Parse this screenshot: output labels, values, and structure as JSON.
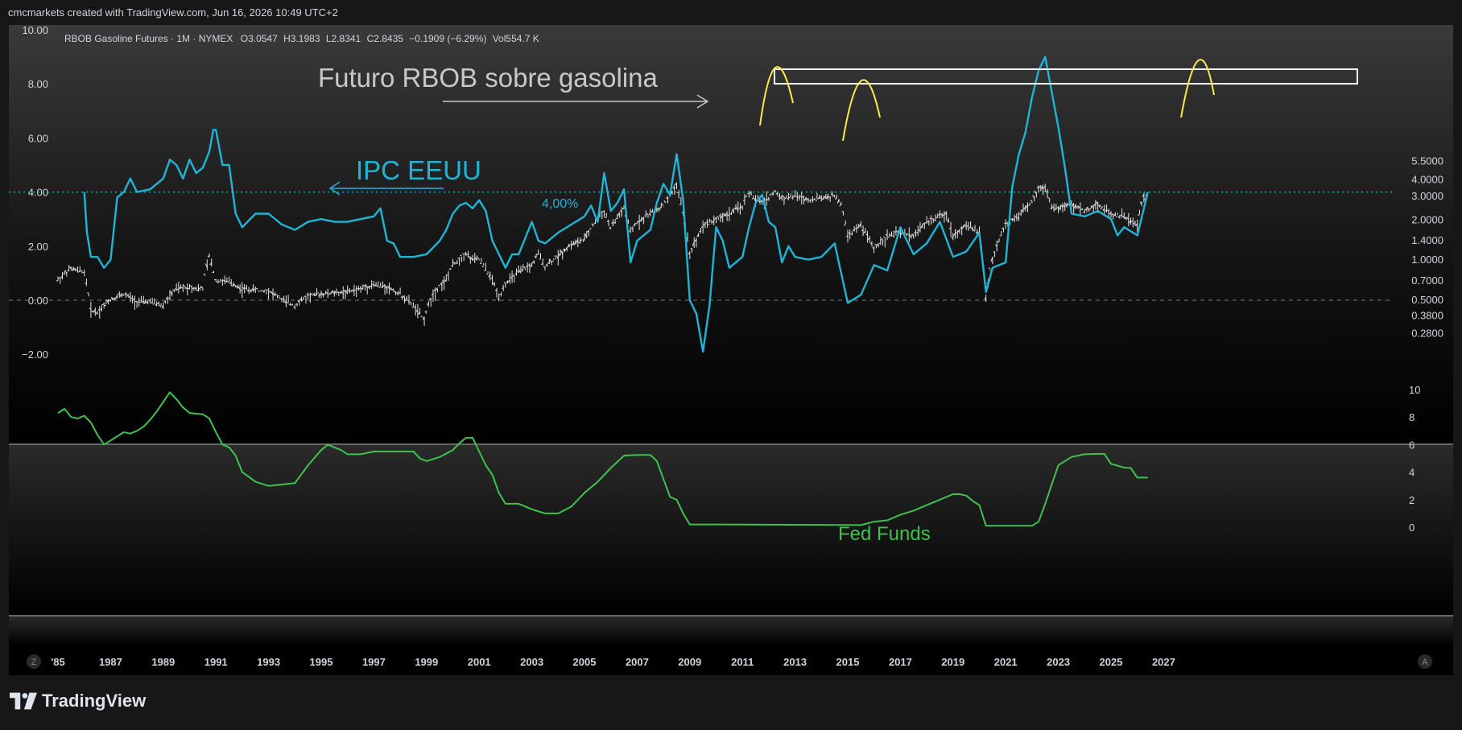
{
  "header": {
    "attribution": "cmcmarkets created with TradingView.com, Jun 16, 2026 10:49 UTC+2",
    "symbol": "RBOB Gasoline Futures · 1M · NYMEX",
    "o_label": "O",
    "o_value": "3.0547",
    "h_label": "H",
    "h_value": "3.1983",
    "l_label": "L",
    "l_value": "2.8341",
    "c_label": "C",
    "c_value": "2.8435",
    "change": "−0.1909 (−6.29%)",
    "vol_label": "Vol",
    "vol_value": "554.7 K"
  },
  "annotations": {
    "title": "Futuro RBOB sobre gasolina",
    "cpi_label": "IPC EEUU",
    "level_label": "4,00%",
    "fed_label": "Fed Funds"
  },
  "footer": {
    "brand": "TradingView",
    "z_button": "Z",
    "a_button": "A"
  },
  "colors": {
    "background": "#000000",
    "cpi": "#1fb5d6",
    "fed": "#3ec24e",
    "price": "#e6e6e6",
    "highlight": "#ffe94a",
    "text": "#d1d4dc"
  },
  "chart_data": [
    {
      "type": "line",
      "title": "RBOB Gasoline Futures · 1M · NYMEX",
      "left_axis_ticks": [
        "10.00",
        "8.00",
        "6.00",
        "4.00",
        "2.00",
        "0.00",
        "−2.00"
      ],
      "left_ylim": [
        -2.8,
        11.0
      ],
      "right_axis_ticks": [
        "5.5000",
        "4.0000",
        "3.0000",
        "2.0000",
        "1.4000",
        "1.0000",
        "0.7000",
        "0.5000",
        "0.3800",
        "0.2800"
      ],
      "right_scale": "log",
      "x_ticks": [
        "'85",
        "1987",
        "1989",
        "1991",
        "1993",
        "1995",
        "1997",
        "1999",
        "2001",
        "2003",
        "2005",
        "2007",
        "2009",
        "2011",
        "2013",
        "2015",
        "2017",
        "2019",
        "2021",
        "2023",
        "2025",
        "2027"
      ],
      "xlim": [
        1984.9,
        2028.6
      ],
      "reference_lines": [
        {
          "y": 4.0,
          "label": "4,00%",
          "style": "dotted"
        },
        {
          "y": 0.0,
          "style": "dashed"
        }
      ],
      "series": [
        {
          "name": "IPC EEUU",
          "axis": "left",
          "x": [
            1986.0,
            1986.1,
            1986.25,
            1986.5,
            1986.75,
            1987.0,
            1987.25,
            1987.5,
            1987.75,
            1988.0,
            1988.5,
            1989.0,
            1989.25,
            1989.5,
            1989.75,
            1990.0,
            1990.25,
            1990.5,
            1990.75,
            1990.9,
            1991.0,
            1991.25,
            1991.5,
            1991.75,
            1992.0,
            1992.5,
            1993.0,
            1993.5,
            1994.0,
            1994.5,
            1995.0,
            1995.5,
            1996.0,
            1996.5,
            1997.0,
            1997.25,
            1997.5,
            1997.75,
            1998.0,
            1998.5,
            1999.0,
            1999.5,
            1999.75,
            2000.0,
            2000.25,
            2000.5,
            2000.75,
            2001.0,
            2001.25,
            2001.5,
            2001.75,
            2002.0,
            2002.25,
            2002.5,
            2003.0,
            2003.25,
            2003.5,
            2004.0,
            2004.5,
            2005.0,
            2005.25,
            2005.5,
            2005.75,
            2006.0,
            2006.25,
            2006.5,
            2006.75,
            2007.0,
            2007.5,
            2007.75,
            2008.0,
            2008.25,
            2008.5,
            2008.75,
            2009.0,
            2009.25,
            2009.5,
            2009.75,
            2010.0,
            2010.25,
            2010.5,
            2011.0,
            2011.25,
            2011.5,
            2011.75,
            2012.0,
            2012.25,
            2012.5,
            2012.75,
            2013.0,
            2013.5,
            2014.0,
            2014.5,
            2015.0,
            2015.5,
            2016.0,
            2016.5,
            2017.0,
            2017.25,
            2017.5,
            2018.0,
            2018.5,
            2019.0,
            2019.5,
            2020.0,
            2020.25,
            2020.5,
            2021.0,
            2021.25,
            2021.5,
            2021.75,
            2022.0,
            2022.25,
            2022.5,
            2022.75,
            2023.0,
            2023.25,
            2023.5,
            2024.0,
            2024.5,
            2025.0,
            2025.25,
            2025.5,
            2026.0,
            2026.4
          ],
          "values": [
            4.0,
            2.5,
            1.6,
            1.6,
            1.2,
            1.5,
            3.8,
            4.0,
            4.5,
            4.0,
            4.1,
            4.5,
            5.2,
            5.0,
            4.5,
            5.2,
            4.7,
            4.9,
            5.5,
            6.3,
            6.3,
            5.0,
            5.0,
            3.2,
            2.7,
            3.2,
            3.2,
            2.8,
            2.6,
            2.9,
            3.0,
            2.9,
            2.9,
            3.0,
            3.1,
            3.4,
            2.2,
            2.1,
            1.6,
            1.6,
            1.7,
            2.2,
            2.6,
            3.2,
            3.5,
            3.6,
            3.4,
            3.7,
            3.3,
            2.2,
            1.7,
            1.2,
            1.7,
            1.7,
            2.9,
            2.2,
            2.1,
            2.5,
            2.8,
            3.1,
            3.5,
            2.9,
            4.7,
            3.3,
            3.6,
            4.1,
            1.4,
            2.2,
            2.6,
            3.6,
            4.3,
            3.9,
            5.4,
            3.7,
            0.0,
            -0.5,
            -1.9,
            -0.2,
            2.7,
            2.2,
            1.2,
            1.6,
            2.7,
            3.6,
            3.9,
            2.9,
            2.7,
            1.4,
            2.0,
            1.6,
            1.5,
            1.6,
            2.1,
            -0.1,
            0.2,
            1.3,
            1.1,
            2.7,
            2.2,
            1.7,
            2.1,
            2.9,
            1.6,
            1.8,
            2.5,
            0.3,
            1.2,
            1.4,
            4.2,
            5.4,
            6.2,
            7.5,
            8.5,
            9.0,
            7.7,
            6.4,
            4.9,
            3.2,
            3.1,
            3.3,
            3.0,
            2.4,
            2.7,
            2.4,
            4.0
          ]
        },
        {
          "name": "RBOB Gasoline Futures",
          "axis": "right",
          "x": [
            1985.0,
            1985.5,
            1986.0,
            1986.25,
            1986.5,
            1987.0,
            1987.5,
            1988.0,
            1988.5,
            1989.0,
            1989.5,
            1990.0,
            1990.5,
            1990.75,
            1991.0,
            1991.5,
            1992.0,
            1993.0,
            1993.5,
            1994.0,
            1994.5,
            1995.0,
            1996.0,
            1996.5,
            1997.0,
            1997.5,
            1998.0,
            1998.5,
            1998.9,
            1999.25,
            1999.75,
            2000.0,
            2000.5,
            2000.75,
            2001.0,
            2001.5,
            2001.75,
            2002.0,
            2002.5,
            2003.0,
            2003.25,
            2003.5,
            2004.0,
            2004.5,
            2005.0,
            2005.5,
            2005.75,
            2006.0,
            2006.5,
            2006.75,
            2007.0,
            2007.5,
            2008.0,
            2008.25,
            2008.5,
            2008.75,
            2009.0,
            2009.25,
            2009.5,
            2010.0,
            2010.5,
            2011.0,
            2011.25,
            2011.5,
            2011.75,
            2012.0,
            2012.25,
            2012.5,
            2013.0,
            2013.5,
            2014.0,
            2014.5,
            2014.75,
            2015.0,
            2015.5,
            2016.0,
            2016.5,
            2017.0,
            2017.5,
            2018.0,
            2018.5,
            2018.75,
            2019.0,
            2019.5,
            2020.0,
            2020.25,
            2020.5,
            2021.0,
            2021.5,
            2022.0,
            2022.25,
            2022.5,
            2022.75,
            2023.0,
            2023.5,
            2024.0,
            2024.5,
            2025.0,
            2025.5,
            2026.0,
            2026.25,
            2026.4
          ],
          "values": [
            0.7,
            0.85,
            0.8,
            0.42,
            0.4,
            0.5,
            0.55,
            0.48,
            0.48,
            0.45,
            0.6,
            0.62,
            0.6,
            1.05,
            0.7,
            0.68,
            0.6,
            0.58,
            0.5,
            0.45,
            0.53,
            0.55,
            0.57,
            0.6,
            0.65,
            0.62,
            0.55,
            0.45,
            0.35,
            0.55,
            0.7,
            0.9,
            1.1,
            1.0,
            1.0,
            0.7,
            0.52,
            0.65,
            0.8,
            0.9,
            1.1,
            0.88,
            1.05,
            1.3,
            1.4,
            2.0,
            2.3,
            1.7,
            2.4,
            1.6,
            1.9,
            2.2,
            2.5,
            3.0,
            3.6,
            2.2,
            1.1,
            1.4,
            1.8,
            2.0,
            2.2,
            2.5,
            3.2,
            2.8,
            2.7,
            2.9,
            3.2,
            2.9,
            3.0,
            2.8,
            2.9,
            3.0,
            2.6,
            1.5,
            1.8,
            1.2,
            1.5,
            1.6,
            1.5,
            1.9,
            2.1,
            2.2,
            1.5,
            1.8,
            1.6,
            0.5,
            1.0,
            1.8,
            2.1,
            2.7,
            3.4,
            3.5,
            2.5,
            2.4,
            2.6,
            2.3,
            2.6,
            2.2,
            2.1,
            1.8,
            3.0,
            2.84
          ]
        }
      ]
    },
    {
      "type": "line",
      "title": "Fed Funds",
      "y_ticks": [
        "10",
        "8",
        "6",
        "4",
        "2",
        "0"
      ],
      "ylim": [
        0,
        10
      ],
      "series": [
        {
          "name": "Fed Funds",
          "x": [
            1985.0,
            1985.25,
            1985.5,
            1985.75,
            1986.0,
            1986.25,
            1986.5,
            1986.75,
            1987.0,
            1987.25,
            1987.5,
            1987.75,
            1988.0,
            1988.25,
            1988.5,
            1988.75,
            1989.0,
            1989.25,
            1989.5,
            1989.75,
            1990.0,
            1990.5,
            1990.75,
            1991.0,
            1991.25,
            1991.5,
            1991.75,
            1992.0,
            1992.5,
            1993.0,
            1994.0,
            1994.5,
            1995.0,
            1995.25,
            1995.5,
            1995.75,
            1996.0,
            1996.5,
            1997.0,
            1997.5,
            1998.0,
            1998.5,
            1998.75,
            1999.0,
            1999.5,
            2000.0,
            2000.25,
            2000.5,
            2000.75,
            2001.0,
            2001.25,
            2001.5,
            2001.75,
            2002.0,
            2002.5,
            2003.0,
            2003.5,
            2004.0,
            2004.5,
            2005.0,
            2005.5,
            2006.0,
            2006.5,
            2007.0,
            2007.5,
            2007.75,
            2008.0,
            2008.25,
            2008.5,
            2008.75,
            2009.0,
            2010.0,
            2015.5,
            2016.0,
            2016.5,
            2017.0,
            2017.5,
            2018.0,
            2018.5,
            2019.0,
            2019.25,
            2019.5,
            2019.75,
            2020.0,
            2020.25,
            2021.0,
            2022.0,
            2022.25,
            2022.5,
            2022.75,
            2023.0,
            2023.5,
            2024.0,
            2024.5,
            2024.75,
            2025.0,
            2025.5,
            2025.75,
            2026.0,
            2026.4
          ],
          "values": [
            8.3,
            8.6,
            8.0,
            7.9,
            8.1,
            7.6,
            6.7,
            6.0,
            6.3,
            6.6,
            6.9,
            6.8,
            7.0,
            7.3,
            7.8,
            8.4,
            9.1,
            9.8,
            9.3,
            8.7,
            8.3,
            8.2,
            7.9,
            6.9,
            6.0,
            5.8,
            5.2,
            4.0,
            3.3,
            3.0,
            3.2,
            4.5,
            5.6,
            6.0,
            5.8,
            5.6,
            5.3,
            5.3,
            5.5,
            5.5,
            5.5,
            5.5,
            5.0,
            4.8,
            5.1,
            5.6,
            6.1,
            6.5,
            6.5,
            5.5,
            4.5,
            3.8,
            2.5,
            1.7,
            1.7,
            1.3,
            1.0,
            1.0,
            1.5,
            2.5,
            3.3,
            4.3,
            5.2,
            5.25,
            5.25,
            4.8,
            3.5,
            2.2,
            2.0,
            1.0,
            0.2,
            0.2,
            0.15,
            0.4,
            0.5,
            0.9,
            1.2,
            1.6,
            2.0,
            2.4,
            2.4,
            2.3,
            1.9,
            1.6,
            0.1,
            0.1,
            0.1,
            0.4,
            1.7,
            3.1,
            4.5,
            5.1,
            5.3,
            5.33,
            5.33,
            4.6,
            4.33,
            4.3,
            3.6,
            3.6
          ]
        }
      ]
    }
  ]
}
